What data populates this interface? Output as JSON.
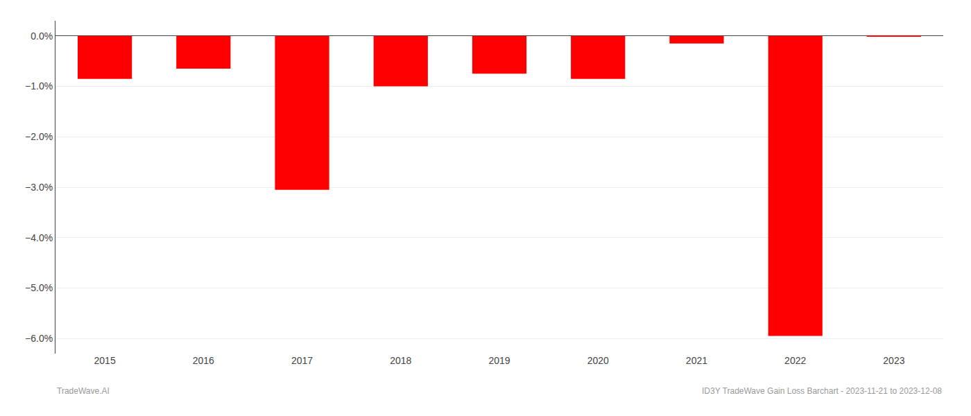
{
  "chart_data": {
    "type": "bar",
    "categories": [
      "2015",
      "2016",
      "2017",
      "2018",
      "2019",
      "2020",
      "2021",
      "2022",
      "2023"
    ],
    "values": [
      -0.0085,
      -0.0065,
      -0.0305,
      -0.01,
      -0.0075,
      -0.0085,
      -0.0015,
      -0.0595,
      -5e-05
    ],
    "color": "#ff0000",
    "ylim": [
      -0.063,
      0.003
    ],
    "yticks": [
      {
        "value": 0.0,
        "label": "0.0%"
      },
      {
        "value": -0.01,
        "label": "−1.0%"
      },
      {
        "value": -0.02,
        "label": "−2.0%"
      },
      {
        "value": -0.03,
        "label": "−3.0%"
      },
      {
        "value": -0.04,
        "label": "−4.0%"
      },
      {
        "value": -0.05,
        "label": "−5.0%"
      },
      {
        "value": -0.06,
        "label": "−6.0%"
      }
    ],
    "grid": true,
    "annotations": [
      "TradeWave.AI",
      "ID3Y TradeWave Gain Loss Barchart - 2023-11-21 to 2023-12-08"
    ]
  }
}
